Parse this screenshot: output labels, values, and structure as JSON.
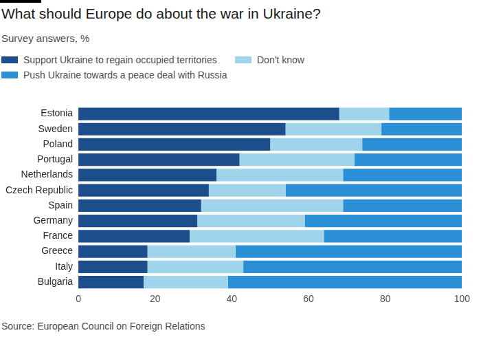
{
  "chart_data": {
    "type": "bar",
    "orientation": "horizontal",
    "stacked": true,
    "title": "What should Europe do about the war in Ukraine?",
    "subtitle": "Survey answers, %",
    "source": "Source: European Council on Foreign Relations",
    "categories": [
      "Estonia",
      "Sweden",
      "Poland",
      "Portugal",
      "Netherlands",
      "Czech Republic",
      "Spain",
      "Germany",
      "France",
      "Greece",
      "Italy",
      "Bulgaria"
    ],
    "series": [
      {
        "name": "Support Ukraine to regain occupied territories",
        "color": "#1d4e8c",
        "values": [
          68,
          54,
          50,
          42,
          36,
          34,
          32,
          31,
          29,
          18,
          18,
          17
        ]
      },
      {
        "name": "Don't know",
        "color": "#9fd4ea",
        "values": [
          13,
          25,
          24,
          30,
          33,
          20,
          37,
          28,
          35,
          23,
          25,
          22
        ]
      },
      {
        "name": "Push Ukraine towards a peace deal with Russia",
        "color": "#2a8fd5",
        "values": [
          19,
          21,
          26,
          28,
          31,
          46,
          31,
          41,
          36,
          59,
          57,
          61
        ]
      }
    ],
    "xlim": [
      0,
      100
    ],
    "xticks": [
      0,
      20,
      40,
      60,
      80,
      100
    ],
    "grid": false,
    "legend": "top"
  }
}
